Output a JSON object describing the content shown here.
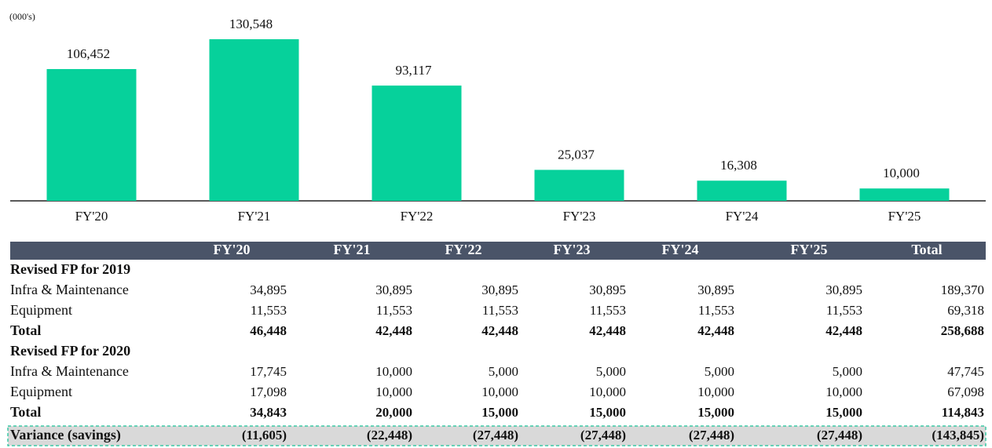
{
  "chart_data": {
    "type": "bar",
    "unit_label": "(000's)",
    "categories": [
      "FY'20",
      "FY'21",
      "FY'22",
      "FY'23",
      "FY'24",
      "FY'25"
    ],
    "values": [
      106452,
      130548,
      93117,
      25037,
      16308,
      10000
    ],
    "value_labels": [
      "106,452",
      "130,548",
      "93,117",
      "25,037",
      "16,308",
      "10,000"
    ],
    "color": "#06d19b"
  },
  "table": {
    "header": [
      "FY'20",
      "FY'21",
      "FY'22",
      "FY'23",
      "FY'24",
      "FY'25",
      "Total"
    ],
    "sections": [
      {
        "title": "Revised FP for 2019",
        "rows": [
          {
            "label": "Infra & Maintenance",
            "values": [
              "34,895",
              "30,895",
              "30,895",
              "30,895",
              "30,895",
              "30,895",
              "189,370"
            ]
          },
          {
            "label": "Equipment",
            "values": [
              "11,553",
              "11,553",
              "11,553",
              "11,553",
              "11,553",
              "11,553",
              "69,318"
            ]
          },
          {
            "label": "Total",
            "values": [
              "46,448",
              "42,448",
              "42,448",
              "42,448",
              "42,448",
              "42,448",
              "258,688"
            ]
          }
        ]
      },
      {
        "title": "Revised FP for 2020",
        "rows": [
          {
            "label": "Infra & Maintenance",
            "values": [
              "17,745",
              "10,000",
              "5,000",
              "5,000",
              "5,000",
              "5,000",
              "47,745"
            ]
          },
          {
            "label": "Equipment",
            "values": [
              "17,098",
              "10,000",
              "10,000",
              "10,000",
              "10,000",
              "10,000",
              "67,098"
            ]
          },
          {
            "label": "Total",
            "values": [
              "34,843",
              "20,000",
              "15,000",
              "15,000",
              "15,000",
              "15,000",
              "114,843"
            ]
          }
        ]
      }
    ],
    "variance": {
      "label": "Variance (savings)",
      "values": [
        "(11,605)",
        "(22,448)",
        "(27,448)",
        "(27,448)",
        "(27,448)",
        "(27,448)",
        "(143,845)"
      ]
    }
  }
}
